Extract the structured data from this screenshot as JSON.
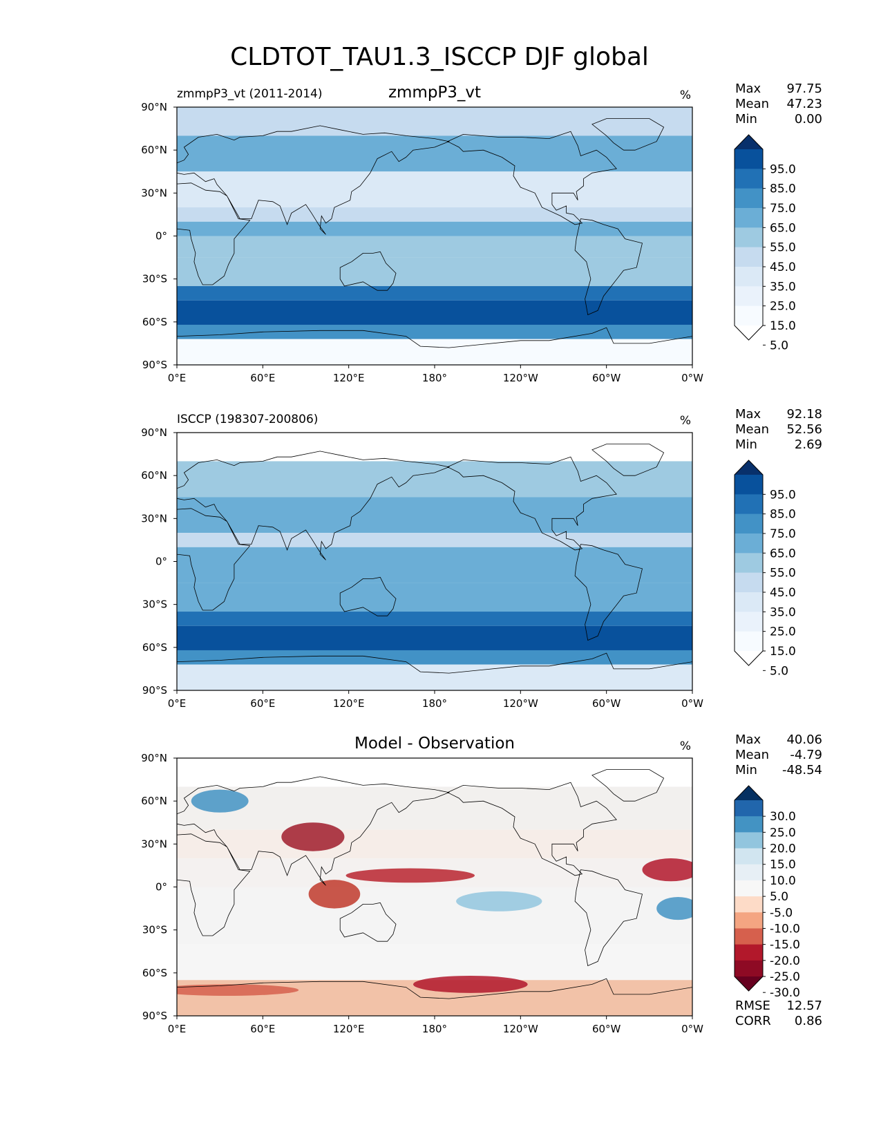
{
  "title": "CLDTOT_TAU1.3_ISCCP DJF global",
  "lon_ticks": [
    "0°E",
    "60°E",
    "120°E",
    "180°",
    "120°W",
    "60°W",
    "0°W"
  ],
  "lat_ticks": [
    "90°N",
    "60°N",
    "30°N",
    "0°",
    "30°S",
    "60°S",
    "90°S"
  ],
  "panels": [
    {
      "left_label": "zmmpP3_vt (2011-2014)",
      "center_label": "zmmpP3_vt",
      "units": "%",
      "stats": [
        [
          "Max",
          "97.75"
        ],
        [
          "Mean",
          "47.23"
        ],
        [
          "Min",
          "0.00"
        ]
      ],
      "colorbar_labels": [
        "95.0",
        "85.0",
        "75.0",
        "65.0",
        "55.0",
        "45.0",
        "35.0",
        "25.0",
        "15.0",
        "5.0"
      ],
      "colorbar_colors": [
        "#08306b",
        "#08519c",
        "#2171b5",
        "#4292c6",
        "#6baed6",
        "#9ecae1",
        "#c6dbef",
        "#dbe9f6",
        "#eaf2fb",
        "#f7fbff",
        "#ffffff"
      ]
    },
    {
      "left_label": "ISCCP (198307-200806)",
      "center_label": "",
      "units": "%",
      "stats": [
        [
          "Max",
          "92.18"
        ],
        [
          "Mean",
          "52.56"
        ],
        [
          "Min",
          "2.69"
        ]
      ],
      "colorbar_labels": [
        "95.0",
        "85.0",
        "75.0",
        "65.0",
        "55.0",
        "45.0",
        "35.0",
        "25.0",
        "15.0",
        "5.0"
      ],
      "colorbar_colors": [
        "#08306b",
        "#08519c",
        "#2171b5",
        "#4292c6",
        "#6baed6",
        "#9ecae1",
        "#c6dbef",
        "#dbe9f6",
        "#eaf2fb",
        "#f7fbff",
        "#ffffff"
      ]
    },
    {
      "left_label": "",
      "center_label": "Model - Observation",
      "units": "%",
      "stats": [
        [
          "Max",
          "40.06"
        ],
        [
          "Mean",
          "-4.79"
        ],
        [
          "Min",
          "-48.54"
        ]
      ],
      "colorbar_labels": [
        "30.0",
        "25.0",
        "20.0",
        "15.0",
        "10.0",
        "5.0",
        "-5.0",
        "-10.0",
        "-15.0",
        "-20.0",
        "-25.0",
        "-30.0"
      ],
      "colorbar_colors": [
        "#053061",
        "#2166ac",
        "#4393c3",
        "#92c5de",
        "#d1e5f0",
        "#e7eff5",
        "#f7f7f7",
        "#fddbc7",
        "#f4a582",
        "#d6604d",
        "#b2182b",
        "#8e0a24",
        "#67001f"
      ],
      "footer_stats": [
        [
          "RMSE",
          "12.57"
        ],
        [
          "CORR",
          "0.86"
        ]
      ]
    }
  ]
}
